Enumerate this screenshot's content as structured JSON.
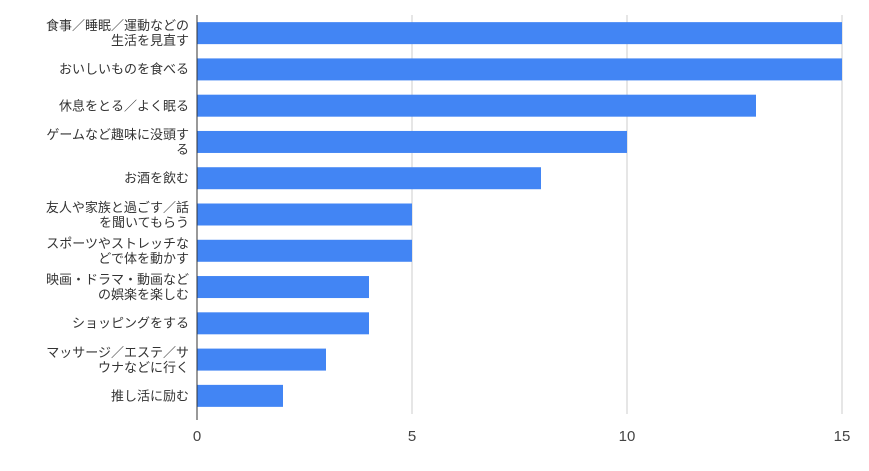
{
  "chart_data": {
    "type": "barh",
    "categories": [
      "食事／睡眠／運動などの生活を見直す",
      "おいしいものを食べる",
      "休息をとる／よく眠る",
      "ゲームなど趣味に没頭する",
      "お酒を飲む",
      "友人や家族と過ごす／話を聞いてもらう",
      "スポーツやストレッチなどで体を動かす",
      "映画・ドラマ・動画などの娯楽を楽しむ",
      "ショッピングをする",
      "マッサージ／エステ／サウナなどに行く",
      "推し活に励む"
    ],
    "values": [
      15,
      15,
      13,
      10,
      8,
      5,
      5,
      4,
      4,
      3,
      2
    ],
    "color": "#4285f4",
    "xlim": [
      0,
      15
    ],
    "xticks": [
      0,
      5,
      10,
      15
    ],
    "grid": true
  }
}
